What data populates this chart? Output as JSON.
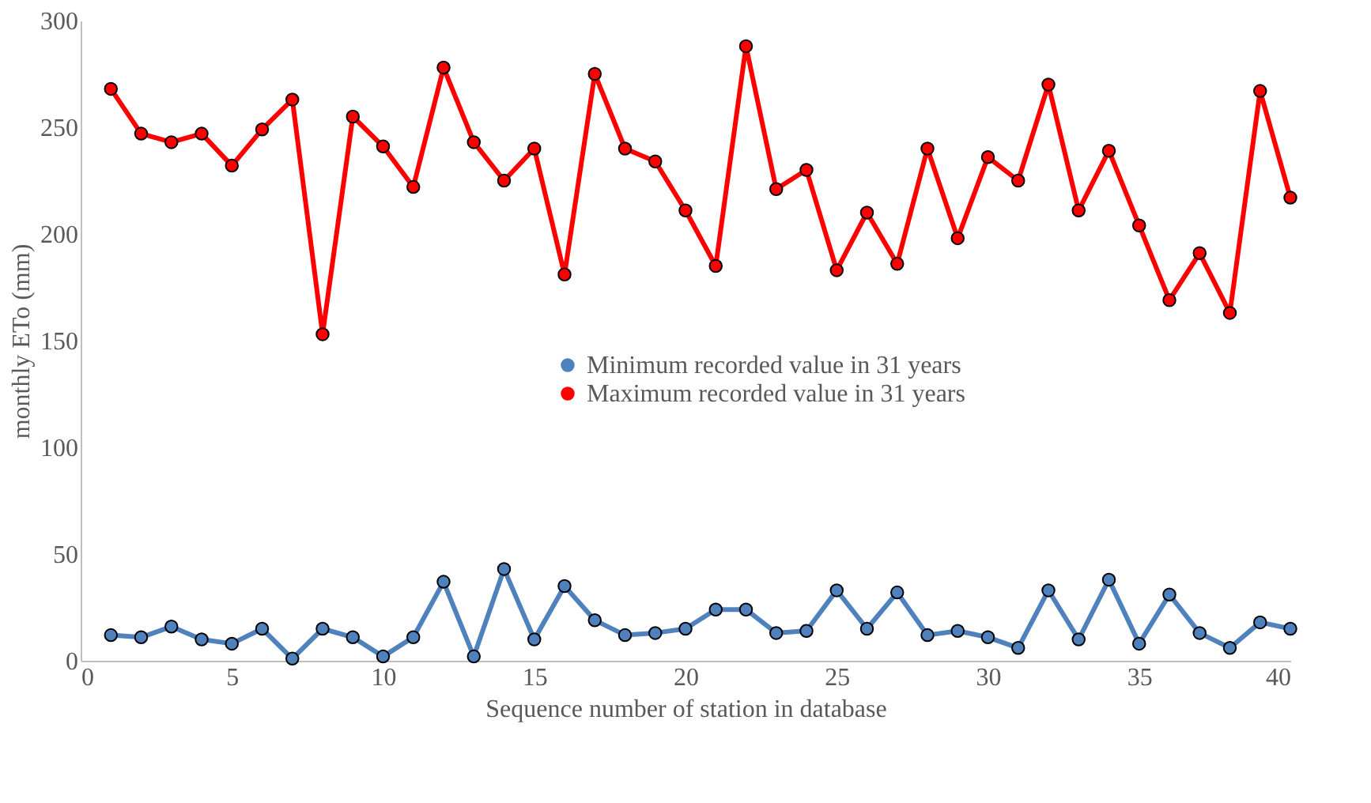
{
  "chart_data": {
    "type": "line",
    "xlabel": "Sequence number of station in database",
    "ylabel": "monthly ETo (mm)",
    "x": [
      1,
      2,
      3,
      4,
      5,
      6,
      7,
      8,
      9,
      10,
      11,
      12,
      13,
      14,
      15,
      16,
      17,
      18,
      19,
      20,
      21,
      22,
      23,
      24,
      25,
      26,
      27,
      28,
      29,
      30,
      31,
      32,
      33,
      34,
      35,
      36,
      37,
      38,
      39,
      40
    ],
    "series": [
      {
        "name": "Minimum recorded value in 31 years",
        "color": "#4f81bd",
        "values": [
          12,
          11,
          16,
          10,
          8,
          15,
          1,
          15,
          11,
          2,
          11,
          37,
          2,
          43,
          10,
          35,
          19,
          12,
          13,
          15,
          24,
          24,
          13,
          14,
          33,
          15,
          32,
          12,
          14,
          11,
          6,
          33,
          10,
          38,
          8,
          31,
          13,
          6,
          18,
          15
        ]
      },
      {
        "name": "Maximum recorded value in 31 years",
        "color": "#ff0000",
        "values": [
          268,
          247,
          243,
          247,
          232,
          249,
          263,
          153,
          255,
          241,
          222,
          278,
          243,
          225,
          240,
          181,
          275,
          240,
          234,
          211,
          185,
          288,
          221,
          230,
          183,
          210,
          186,
          240,
          198,
          236,
          225,
          270,
          211,
          239,
          204,
          169,
          191,
          163,
          267,
          217
        ]
      }
    ],
    "xlim": [
      0,
      40
    ],
    "xticks": [
      0,
      5,
      10,
      15,
      20,
      25,
      30,
      35,
      40
    ],
    "ylim": [
      0,
      300
    ],
    "yticks": [
      0,
      50,
      100,
      150,
      200,
      250,
      300
    ],
    "grid": false,
    "legend": "center",
    "marker": "circle",
    "line_style": "solid"
  }
}
